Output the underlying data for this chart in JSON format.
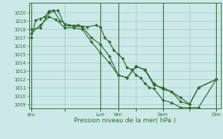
{
  "xlabel": "Pression niveau de la mer( hPa )",
  "ylim": [
    1008.5,
    1021.2
  ],
  "xlim": [
    0,
    43
  ],
  "yticks": [
    1009,
    1010,
    1011,
    1012,
    1013,
    1014,
    1015,
    1016,
    1017,
    1018,
    1019,
    1020
  ],
  "bg_color": "#cce8e8",
  "grid_color": "#99cccc",
  "line_color": "#2d6e2d",
  "marker_color": "#2d6e2d",
  "tick_label_color": "#2d6e2d",
  "axis_label_color": "#2d6e2d",
  "day_labels": [
    "Jeu",
    "",
    "Lun",
    "Ven",
    "",
    "Sam",
    "",
    "Dim"
  ],
  "day_positions": [
    0.5,
    8,
    16,
    20,
    24,
    30,
    36,
    42
  ],
  "vlines": [
    0.5,
    16,
    20,
    30,
    42
  ],
  "series1_x": [
    0.5,
    1.5,
    2.5,
    3.5,
    4.5,
    5.5,
    7,
    9,
    11,
    13,
    15,
    16,
    17,
    18,
    19,
    20,
    21,
    22,
    23,
    24,
    25,
    26,
    27,
    28,
    30,
    32,
    34,
    36,
    38,
    42
  ],
  "series1_y": [
    1017.0,
    1019.1,
    1019.3,
    1019.5,
    1020.2,
    1020.3,
    1019.0,
    1018.5,
    1018.5,
    1018.3,
    1018.5,
    1018.3,
    1017.0,
    1016.5,
    1015.5,
    1015.0,
    1014.5,
    1013.4,
    1013.2,
    1012.5,
    1012.2,
    1011.5,
    1011.0,
    1010.9,
    1009.5,
    1009.2,
    1008.6,
    1008.6,
    1008.6,
    1012.0
  ],
  "series2_x": [
    0.5,
    2.5,
    4.5,
    6,
    8,
    10,
    12,
    14,
    16,
    18,
    20,
    22,
    24,
    26,
    28,
    30,
    32,
    34,
    36,
    38,
    42
  ],
  "series2_y": [
    1017.5,
    1018.5,
    1019.5,
    1019.2,
    1018.2,
    1018.2,
    1018.0,
    1016.5,
    1015.2,
    1014.0,
    1012.5,
    1012.2,
    1013.5,
    1013.2,
    1011.5,
    1010.8,
    1010.5,
    1009.8,
    1009.0,
    1011.0,
    1012.0
  ],
  "series3_x": [
    0.5,
    2.5,
    4.5,
    6.5,
    8,
    10,
    12,
    14,
    16,
    18,
    20,
    22,
    24,
    26,
    28,
    30,
    32,
    34,
    36,
    38,
    42
  ],
  "series3_y": [
    1018.0,
    1018.2,
    1020.0,
    1020.3,
    1018.5,
    1018.4,
    1018.3,
    1017.0,
    1016.2,
    1014.8,
    1012.5,
    1012.2,
    1013.6,
    1013.1,
    1011.3,
    1011.0,
    1010.5,
    1009.3,
    1009.0,
    1011.0,
    1012.0
  ]
}
